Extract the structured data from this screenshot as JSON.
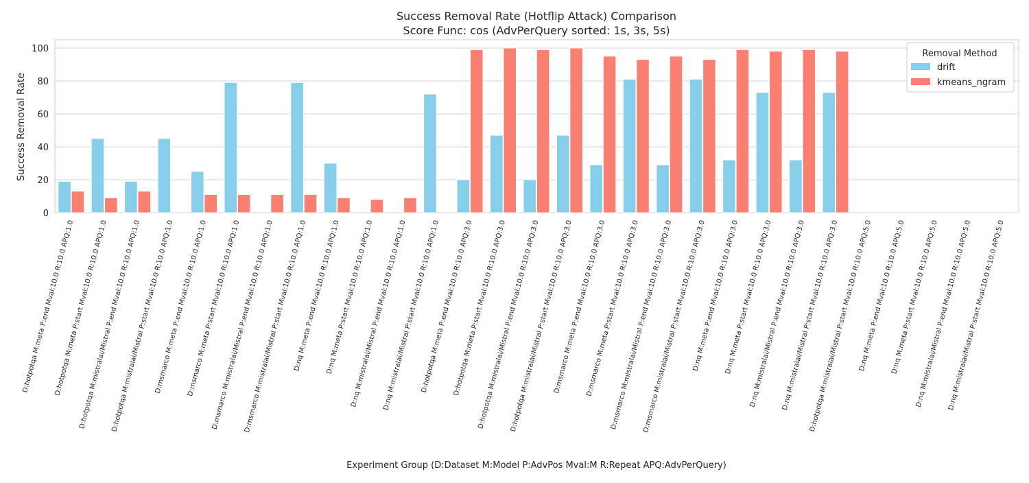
{
  "chart_data": {
    "type": "bar",
    "title": "Success Removal Rate (Hotflip Attack) Comparison",
    "subtitle": "Score Func: cos (AdvPerQuery sorted: 1s, 3s, 5s)",
    "xlabel": "Experiment Group (D:Dataset M:Model P:AdvPos Mval:M R:Repeat APQ:AdvPerQuery)",
    "ylabel": "Success Removal Rate",
    "ylim": [
      0,
      105
    ],
    "yticks": [
      0,
      20,
      40,
      60,
      80,
      100
    ],
    "grid": true,
    "legend": {
      "title": "Removal Method",
      "position": "top-right"
    },
    "categories": [
      "D:hotpotqa M:meta P:end Mval:10.0 R:10.0 APQ:1.0",
      "D:hotpotqa M:meta P:start Mval:10.0 R:10.0 APQ:1.0",
      "D:hotpotqa M:mistralai/Mistral P:end Mval:10.0 R:10.0 APQ:1.0",
      "D:hotpotqa M:mistralai/Mistral P:start Mval:10.0 R:10.0 APQ:1.0",
      "D:msmarco M:meta P:end Mval:10.0 R:10.0 APQ:1.0",
      "D:msmarco M:meta P:start Mval:10.0 R:10.0 APQ:1.0",
      "D:msmarco M:mistralai/Mistral P:end Mval:10.0 R:10.0 APQ:1.0",
      "D:msmarco M:mistralai/Mistral P:start Mval:10.0 R:10.0 APQ:1.0",
      "D:nq M:meta P:end Mval:10.0 R:10.0 APQ:1.0",
      "D:nq M:meta P:start Mval:10.0 R:10.0 APQ:1.0",
      "D:nq M:mistralai/Mistral P:end Mval:10.0 R:10.0 APQ:1.0",
      "D:nq M:mistralai/Mistral P:start Mval:10.0 R:10.0 APQ:1.0",
      "D:hotpotqa M:meta P:end Mval:10.0 R:10.0 APQ:3.0",
      "D:hotpotqa M:meta P:start Mval:10.0 R:10.0 APQ:3.0",
      "D:hotpotqa M:mistralai/Mistral P:end Mval:10.0 R:10.0 APQ:3.0",
      "D:hotpotqa M:mistralai/Mistral P:start Mval:10.0 R:10.0 APQ:3.0",
      "D:msmarco M:meta P:end Mval:10.0 R:10.0 APQ:3.0",
      "D:msmarco M:meta P:start Mval:10.0 R:10.0 APQ:3.0",
      "D:msmarco M:mistralai/Mistral P:end Mval:10.0 R:10.0 APQ:3.0",
      "D:msmarco M:mistralai/Mistral P:start Mval:10.0 R:10.0 APQ:3.0",
      "D:nq M:meta P:end Mval:10.0 R:10.0 APQ:3.0",
      "D:nq M:meta P:start Mval:10.0 R:10.0 APQ:3.0",
      "D:nq M:mistralai/Mistral P:end Mval:10.0 R:10.0 APQ:3.0",
      "D:nq M:mistralai/Mistral P:start Mval:10.0 R:10.0 APQ:3.0",
      "D:hotpotqa M:mistralai/Mistral P:start Mval:10.0 R:10.0 APQ:5.0",
      "D:nq M:meta P:end Mval:10.0 R:10.0 APQ:5.0",
      "D:nq M:meta P:start Mval:10.0 R:10.0 APQ:5.0",
      "D:nq M:mistralai/Mistral P:end Mval:10.0 R:10.0 APQ:5.0",
      "D:nq M:mistralai/Mistral P:start Mval:10.0 R:10.0 APQ:5.0"
    ],
    "series": [
      {
        "name": "drift",
        "color": "#87ceeb",
        "values": [
          19,
          45,
          19,
          45,
          25,
          79,
          null,
          79,
          30,
          null,
          null,
          72,
          20,
          47,
          20,
          47,
          29,
          81,
          29,
          81,
          32,
          73,
          32,
          73,
          null,
          null,
          null,
          null,
          null
        ]
      },
      {
        "name": "kmeans_ngram",
        "color": "#fa8072",
        "values": [
          13,
          9,
          13,
          null,
          11,
          11,
          11,
          11,
          9,
          8,
          9,
          null,
          99,
          100,
          99,
          100,
          95,
          93,
          95,
          93,
          99,
          98,
          99,
          98,
          null,
          null,
          null,
          null,
          null
        ]
      }
    ]
  }
}
